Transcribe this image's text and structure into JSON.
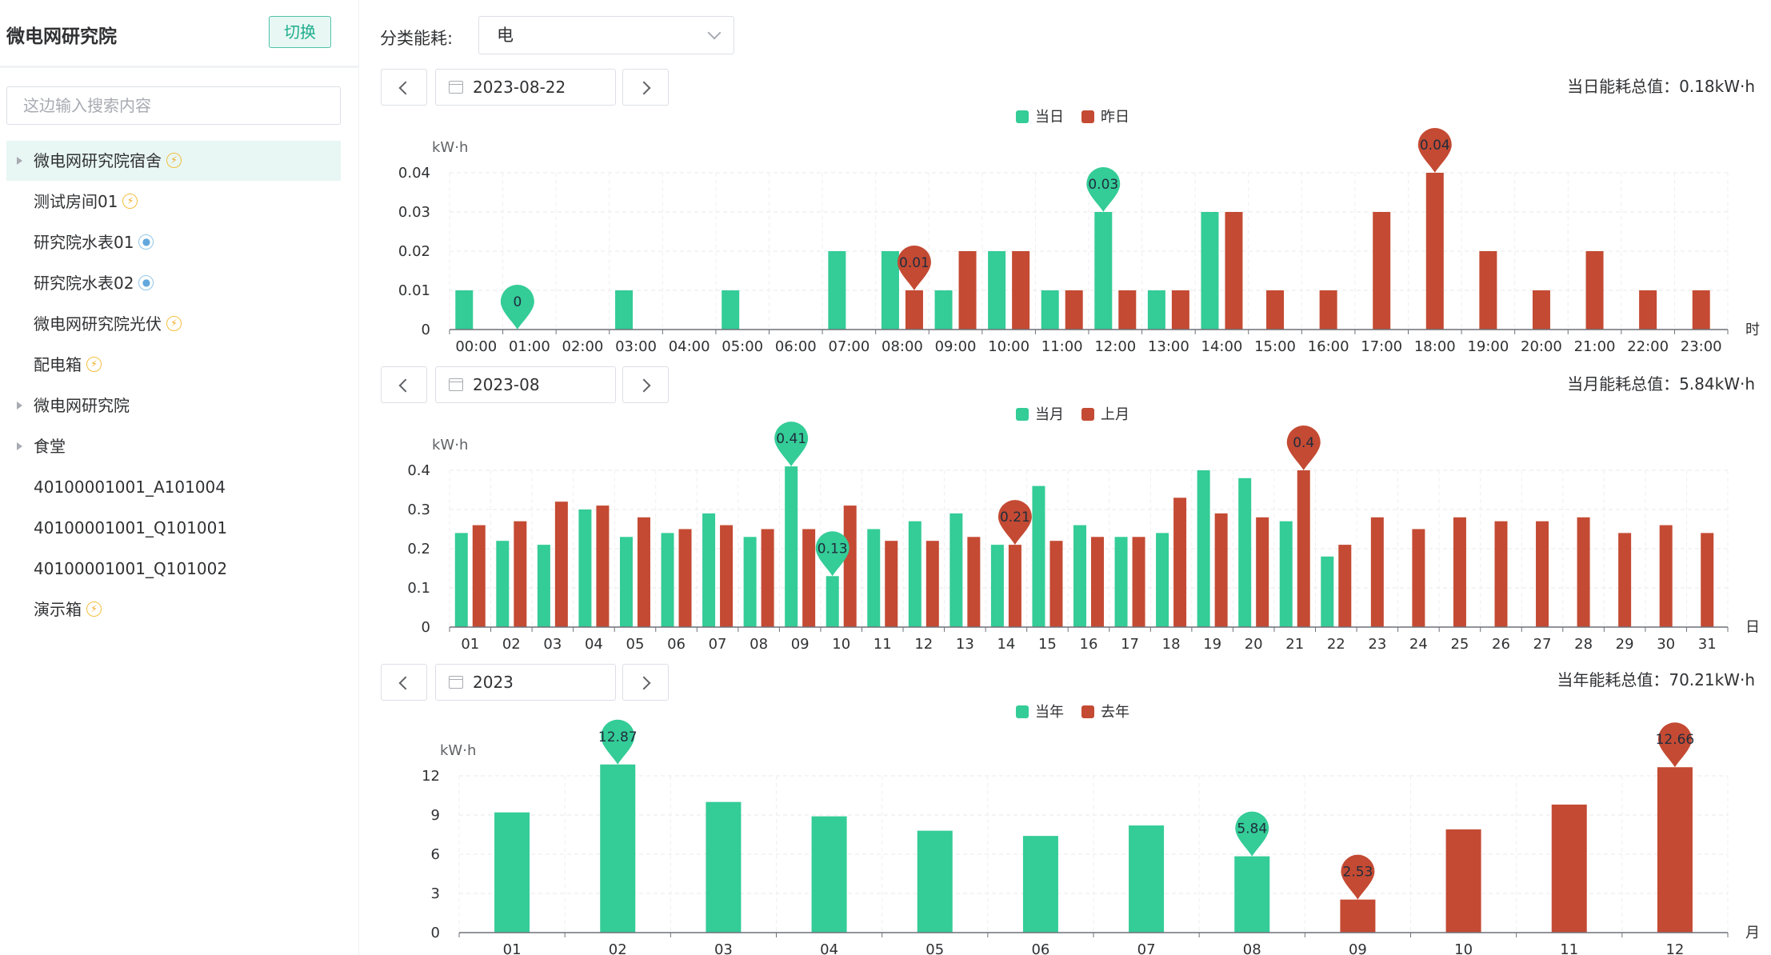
{
  "sidebar": {
    "title": "微电网研究院",
    "switch_label": "切换",
    "search_placeholder": "这边输入搜索内容",
    "items": [
      {
        "label": "微电网研究院宿舍",
        "icon": "lightning-icon",
        "expandable": true,
        "active": true
      },
      {
        "label": "测试房间01",
        "icon": "lightning-icon",
        "expandable": false,
        "active": false
      },
      {
        "label": "研究院水表01",
        "icon": "water-drop-icon",
        "expandable": false,
        "active": false
      },
      {
        "label": "研究院水表02",
        "icon": "water-drop-icon",
        "expandable": false,
        "active": false
      },
      {
        "label": "微电网研究院光伏",
        "icon": "lightning-icon",
        "expandable": false,
        "active": false
      },
      {
        "label": "配电箱",
        "icon": "lightning-icon",
        "expandable": false,
        "active": false
      },
      {
        "label": "微电网研究院",
        "icon": "",
        "expandable": true,
        "active": false
      },
      {
        "label": "食堂",
        "icon": "",
        "expandable": true,
        "active": false
      },
      {
        "label": "40100001001_A101004",
        "icon": "",
        "expandable": false,
        "active": false
      },
      {
        "label": "40100001001_Q101001",
        "icon": "",
        "expandable": false,
        "active": false
      },
      {
        "label": "40100001001_Q101002",
        "icon": "",
        "expandable": false,
        "active": false
      },
      {
        "label": "演示箱",
        "icon": "lightning-icon",
        "expandable": false,
        "active": false
      }
    ]
  },
  "filter": {
    "label": "分类能耗:",
    "selected": "电"
  },
  "colors": {
    "current": "#34cc97",
    "previous": "#c44a33",
    "accent": "#1fae8d"
  },
  "sections": {
    "daily": {
      "date": "2023-08-22",
      "total": "当日能耗总值：0.18kW·h"
    },
    "monthly": {
      "date": "2023-08",
      "total": "当月能耗总值：5.84kW·h"
    },
    "yearly": {
      "date": "2023",
      "total": "当年能耗总值：70.21kW·h"
    }
  },
  "chart_data": [
    {
      "type": "bar",
      "ylabel": "kW·h",
      "xlabel": "时",
      "ylim": [
        0,
        0.04
      ],
      "yticks": [
        "0",
        "0.01",
        "0.02",
        "0.03",
        "0.04"
      ],
      "categories": [
        "00:00",
        "01:00",
        "02:00",
        "03:00",
        "04:00",
        "05:00",
        "06:00",
        "07:00",
        "08:00",
        "09:00",
        "10:00",
        "11:00",
        "12:00",
        "13:00",
        "14:00",
        "15:00",
        "16:00",
        "17:00",
        "18:00",
        "19:00",
        "20:00",
        "21:00",
        "22:00",
        "23:00"
      ],
      "legend": [
        "当日",
        "昨日"
      ],
      "series": [
        {
          "name": "当日",
          "values": [
            0.01,
            0,
            0,
            0.01,
            0,
            0.01,
            0,
            0.02,
            0.02,
            0.01,
            0.02,
            0.01,
            0.03,
            0.01,
            0.03,
            null,
            null,
            null,
            null,
            null,
            null,
            null,
            null,
            null
          ]
        },
        {
          "name": "昨日",
          "values": [
            0,
            0,
            0,
            0,
            0,
            0,
            0,
            0,
            0.01,
            0.02,
            0.02,
            0.01,
            0.01,
            0.01,
            0.03,
            0.01,
            0.01,
            0.03,
            0.04,
            0.02,
            0.01,
            0.02,
            0.01,
            0.01
          ]
        }
      ],
      "markers": [
        {
          "series": 0,
          "index": 1,
          "label": "0"
        },
        {
          "series": 0,
          "index": 12,
          "label": "0.03"
        },
        {
          "series": 1,
          "index": 8,
          "label": "0.01"
        },
        {
          "series": 1,
          "index": 18,
          "label": "0.04"
        }
      ]
    },
    {
      "type": "bar",
      "ylabel": "kW·h",
      "xlabel": "日",
      "ylim": [
        0,
        0.4
      ],
      "yticks": [
        "0",
        "0.1",
        "0.2",
        "0.3",
        "0.4"
      ],
      "categories": [
        "01",
        "02",
        "03",
        "04",
        "05",
        "06",
        "07",
        "08",
        "09",
        "10",
        "11",
        "12",
        "13",
        "14",
        "15",
        "16",
        "17",
        "18",
        "19",
        "20",
        "21",
        "22",
        "23",
        "24",
        "25",
        "26",
        "27",
        "28",
        "29",
        "30",
        "31"
      ],
      "legend": [
        "当月",
        "上月"
      ],
      "series": [
        {
          "name": "当月",
          "values": [
            0.24,
            0.22,
            0.21,
            0.3,
            0.23,
            0.24,
            0.29,
            0.23,
            0.41,
            0.13,
            0.25,
            0.27,
            0.29,
            0.21,
            0.36,
            0.26,
            0.23,
            0.24,
            0.4,
            0.38,
            0.27,
            0.18,
            null,
            null,
            null,
            null,
            null,
            null,
            null,
            null,
            null
          ]
        },
        {
          "name": "上月",
          "values": [
            0.26,
            0.27,
            0.32,
            0.31,
            0.28,
            0.25,
            0.26,
            0.25,
            0.25,
            0.31,
            0.22,
            0.22,
            0.23,
            0.21,
            0.22,
            0.23,
            0.23,
            0.33,
            0.29,
            0.28,
            0.4,
            0.21,
            0.28,
            0.25,
            0.28,
            0.27,
            0.27,
            0.28,
            0.24,
            0.26,
            0.24
          ]
        }
      ],
      "markers": [
        {
          "series": 0,
          "index": 8,
          "label": "0.41"
        },
        {
          "series": 0,
          "index": 9,
          "label": "0.13"
        },
        {
          "series": 1,
          "index": 13,
          "label": "0.21"
        },
        {
          "series": 1,
          "index": 20,
          "label": "0.4"
        }
      ]
    },
    {
      "type": "bar",
      "ylabel": "kW·h",
      "xlabel": "月",
      "ylim": [
        0,
        12
      ],
      "yticks": [
        "0",
        "3",
        "6",
        "9",
        "12"
      ],
      "categories": [
        "01",
        "02",
        "03",
        "04",
        "05",
        "06",
        "07",
        "08",
        "09",
        "10",
        "11",
        "12"
      ],
      "legend": [
        "当年",
        "去年"
      ],
      "series": [
        {
          "name": "当年",
          "values": [
            9.2,
            12.87,
            10.0,
            8.9,
            7.8,
            7.4,
            8.2,
            5.84,
            null,
            null,
            null,
            null
          ]
        },
        {
          "name": "去年",
          "values": [
            null,
            null,
            null,
            null,
            null,
            null,
            null,
            null,
            2.53,
            7.9,
            9.8,
            12.66
          ]
        }
      ],
      "markers": [
        {
          "series": 0,
          "index": 1,
          "label": "12.87"
        },
        {
          "series": 0,
          "index": 7,
          "label": "5.84"
        },
        {
          "series": 1,
          "index": 8,
          "label": "2.53"
        },
        {
          "series": 1,
          "index": 11,
          "label": "12.66"
        }
      ]
    }
  ]
}
